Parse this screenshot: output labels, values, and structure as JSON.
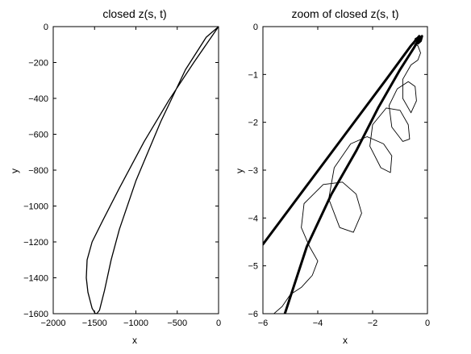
{
  "chart_data": [
    {
      "type": "line",
      "title": "closed z(s, t)",
      "xlabel": "x",
      "ylabel": "y",
      "xlim": [
        -2000,
        0
      ],
      "ylim": [
        -1600,
        0
      ],
      "xticks": [
        -2000,
        -1500,
        -1000,
        -500,
        0
      ],
      "yticks": [
        0,
        -200,
        -400,
        -600,
        -800,
        -1000,
        -1200,
        -1400,
        -1600
      ],
      "xtick_labels": [
        "−2000",
        "−1500",
        "−1000",
        "−500",
        "0"
      ],
      "ytick_labels": [
        "0",
        "−200",
        "−400",
        "−600",
        "−800",
        "−1000",
        "−1200",
        "−1400",
        "−1600"
      ],
      "grid": false,
      "line_color": "#000000",
      "series": [
        {
          "x": [
            0,
            -300,
            -600,
            -900,
            -1200,
            -1400,
            -1530,
            -1590,
            -1600,
            -1580,
            -1530,
            -1490,
            -1470,
            -1440,
            -1380,
            -1300,
            -1200,
            -1000,
            -700,
            -400,
            -150,
            0
          ],
          "y": [
            0,
            -200,
            -410,
            -640,
            -900,
            -1080,
            -1200,
            -1300,
            -1400,
            -1480,
            -1570,
            -1600,
            -1598,
            -1580,
            -1470,
            -1300,
            -1130,
            -860,
            -530,
            -240,
            -60,
            0
          ]
        }
      ]
    },
    {
      "type": "line",
      "title": "zoom of closed z(s, t)",
      "xlabel": "x",
      "ylabel": "y",
      "xlim": [
        -6,
        0
      ],
      "ylim": [
        -6,
        0
      ],
      "xticks": [
        -6,
        -4,
        -2,
        0
      ],
      "yticks": [
        0,
        -1,
        -2,
        -3,
        -4,
        -5,
        -6
      ],
      "xtick_labels": [
        "−6",
        "−4",
        "−2",
        "0"
      ],
      "ytick_labels": [
        "0",
        "−1",
        "−2",
        "−3",
        "−4",
        "−5",
        "−6"
      ],
      "grid": false,
      "line_color": "#000000",
      "series": [
        {
          "x": [
            -6,
            -4.5,
            -3,
            -1.5,
            -0.6,
            -0.3
          ],
          "y": [
            -4.55,
            -3.4,
            -2.25,
            -1.1,
            -0.4,
            -0.2
          ]
        },
        {
          "x": [
            -5.2,
            -4.4,
            -3.5,
            -2.6,
            -1.8,
            -1.0,
            -0.5,
            -0.3,
            -0.2,
            -0.25,
            -0.35
          ],
          "y": [
            -6,
            -4.6,
            -3.5,
            -2.6,
            -1.7,
            -0.9,
            -0.45,
            -0.25,
            -0.2,
            -0.3,
            -0.35
          ]
        },
        {
          "x": [
            -5.6,
            -5.3,
            -5.0,
            -4.6,
            -4.2,
            -4.0,
            -4.3,
            -4.6,
            -4.5,
            -3.8,
            -3.1,
            -2.6,
            -2.4,
            -2.7,
            -3.2,
            -3.6,
            -3.4,
            -2.8,
            -2.2,
            -1.6,
            -1.3,
            -1.35,
            -1.7,
            -2.1,
            -2.0,
            -1.5,
            -1.0,
            -0.7,
            -0.65,
            -0.9,
            -1.3,
            -1.4,
            -1.1,
            -0.7,
            -0.45,
            -0.4,
            -0.6,
            -0.9,
            -0.9,
            -0.6,
            -0.35,
            -0.25,
            -0.35,
            -0.5,
            -0.45,
            -0.3
          ],
          "y": [
            -6.0,
            -5.85,
            -5.6,
            -5.45,
            -5.2,
            -4.9,
            -4.6,
            -4.2,
            -3.7,
            -3.3,
            -3.25,
            -3.5,
            -3.9,
            -4.3,
            -4.2,
            -3.6,
            -2.95,
            -2.45,
            -2.3,
            -2.45,
            -2.7,
            -3.05,
            -2.95,
            -2.5,
            -2.05,
            -1.7,
            -1.75,
            -2.05,
            -2.35,
            -2.4,
            -2.1,
            -1.65,
            -1.3,
            -1.15,
            -1.25,
            -1.55,
            -1.8,
            -1.5,
            -1.1,
            -0.8,
            -0.7,
            -0.55,
            -0.4,
            -0.35,
            -0.25,
            -0.2
          ]
        }
      ]
    }
  ]
}
